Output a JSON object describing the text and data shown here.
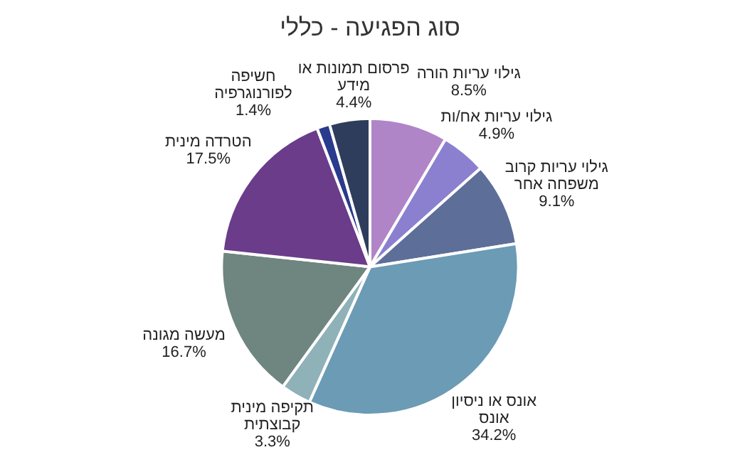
{
  "chart_data": {
    "type": "pie",
    "title": "סוג הפגיעה - כללי",
    "categories": [
      "גילוי עריות הורה",
      "גילוי עריות אח/ות",
      "גילוי עריות קרוב משפחה אחר",
      "אונס או ניסיון אונס",
      "תקיפה מינית קבוצתית",
      "מעשה מגונה",
      "הטרדה מינית",
      "חשיפה לפורנוגרפיה",
      "פרסום תמונות או מידע"
    ],
    "values": [
      8.5,
      4.9,
      9.1,
      34.2,
      3.3,
      16.7,
      17.5,
      1.4,
      4.4
    ],
    "colors": [
      "#b085c8",
      "#8a80cf",
      "#5d6e98",
      "#6b9bb5",
      "#8fb1b8",
      "#6f8580",
      "#6b3c8a",
      "#2a3a8c",
      "#2f3d5c"
    ],
    "value_labels": [
      "8.5%",
      "4.9%",
      "9.1%",
      "34.2%",
      "3.3%",
      "16.7%",
      "17.5%",
      "1.4%",
      "4.4%"
    ],
    "legend": false
  }
}
